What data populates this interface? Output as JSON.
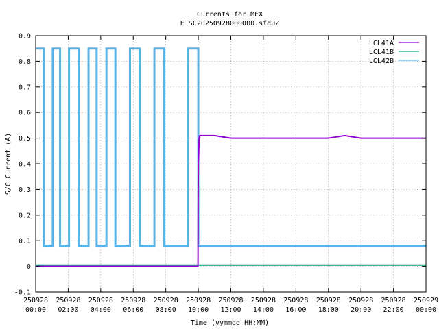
{
  "chart_data": {
    "type": "line",
    "title": "Currents for MEX",
    "subtitle": "E_SC20250928000000.sfduZ",
    "xlabel": "Time (yymmdd HH:MM)",
    "ylabel": "S/C Current (A)",
    "xlim": [
      0,
      24
    ],
    "ylim": [
      -0.1,
      0.9
    ],
    "y_ticks": [
      -0.1,
      0,
      0.1,
      0.2,
      0.3,
      0.4,
      0.5,
      0.6,
      0.7,
      0.8,
      0.9
    ],
    "y_tick_labels": [
      "-0.1",
      "0",
      "0.1",
      "0.2",
      "0.3",
      "0.4",
      "0.5",
      "0.6",
      "0.7",
      "0.8",
      "0.9"
    ],
    "x_ticks": [
      0,
      2,
      4,
      6,
      8,
      10,
      12,
      14,
      16,
      18,
      20,
      22,
      24
    ],
    "x_tick_labels": [
      [
        "250928",
        "00:00"
      ],
      [
        "250928",
        "02:00"
      ],
      [
        "250928",
        "04:00"
      ],
      [
        "250928",
        "06:00"
      ],
      [
        "250928",
        "08:00"
      ],
      [
        "250928",
        "10:00"
      ],
      [
        "250928",
        "12:00"
      ],
      [
        "250928",
        "14:00"
      ],
      [
        "250928",
        "16:00"
      ],
      [
        "250928",
        "18:00"
      ],
      [
        "250928",
        "20:00"
      ],
      [
        "250928",
        "22:00"
      ],
      [
        "250929",
        "00:00"
      ]
    ],
    "grid": true,
    "legend_position": "top-right",
    "series": [
      {
        "name": "LCL41A",
        "color": "#9400d3",
        "x": [
          0,
          9.98,
          10.0,
          10.02,
          10.05,
          10.1,
          10.2,
          11,
          12,
          13,
          14,
          15,
          16,
          17,
          18,
          19,
          20,
          21,
          22,
          23,
          24
        ],
        "y": [
          0,
          0,
          0.4,
          0.43,
          0.5,
          0.51,
          0.51,
          0.51,
          0.5,
          0.5,
          0.5,
          0.5,
          0.5,
          0.5,
          0.5,
          0.51,
          0.5,
          0.5,
          0.5,
          0.5,
          0.5
        ]
      },
      {
        "name": "LCL41B",
        "color": "#009e73",
        "x": [
          0,
          24
        ],
        "y": [
          0.005,
          0.005
        ]
      },
      {
        "name": "LCL42B",
        "color": "#56b4e9",
        "x": [
          0,
          0.5,
          0.5,
          1.05,
          1.05,
          1.5,
          1.5,
          2.05,
          2.05,
          2.65,
          2.65,
          3.25,
          3.25,
          3.75,
          3.75,
          4.35,
          4.35,
          4.9,
          4.9,
          5.8,
          5.8,
          6.4,
          6.4,
          7.3,
          7.3,
          7.9,
          7.9,
          9.35,
          9.35,
          10.0,
          10.0,
          24
        ],
        "y": [
          0.85,
          0.85,
          0.08,
          0.08,
          0.85,
          0.85,
          0.08,
          0.08,
          0.85,
          0.85,
          0.08,
          0.08,
          0.85,
          0.85,
          0.08,
          0.08,
          0.85,
          0.85,
          0.08,
          0.08,
          0.85,
          0.85,
          0.08,
          0.08,
          0.85,
          0.85,
          0.08,
          0.08,
          0.85,
          0.85,
          0.08,
          0.08
        ]
      }
    ]
  }
}
